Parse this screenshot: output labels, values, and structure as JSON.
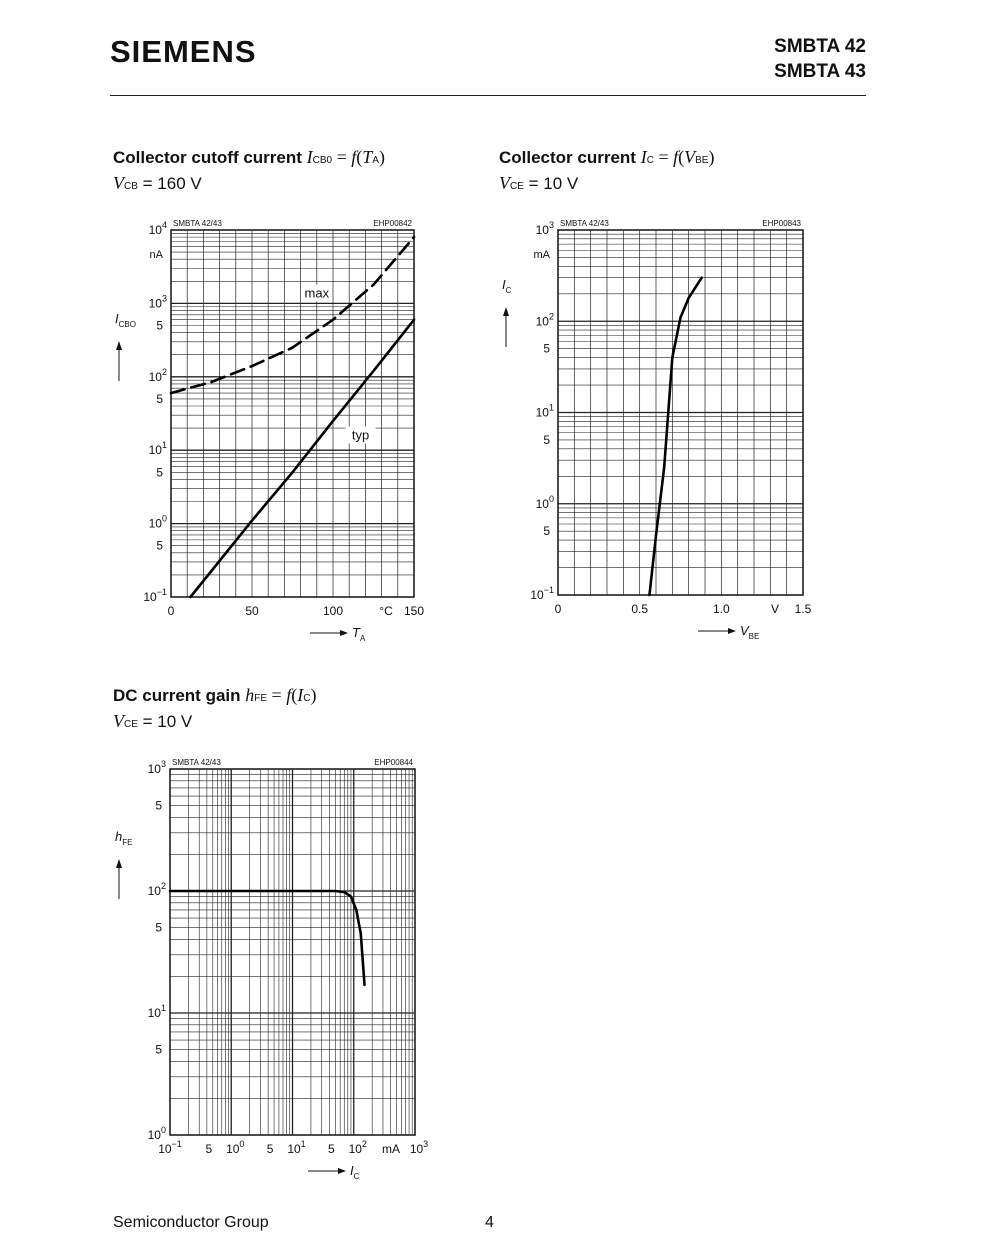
{
  "header": {
    "logo": "SIEMENS",
    "part1": "SMBTA 42",
    "part2": "SMBTA 43"
  },
  "footer": {
    "left": "Semiconductor Group",
    "page": "4"
  },
  "charts_text": [
    {
      "title": "Collector cutoff current",
      "formula_sym": "I",
      "formula_sub": "CB0",
      "formula_eq": " = ",
      "formula_fn": "f",
      "formula_arg": "T",
      "formula_arg_sub": "A",
      "cond_sym": "V",
      "cond_sub": "CB",
      "cond_val": " = 160 V"
    },
    {
      "title": "Collector current",
      "formula_sym": "I",
      "formula_sub": "C",
      "formula_eq": " = ",
      "formula_fn": "f",
      "formula_arg": "V",
      "formula_arg_sub": "BE",
      "cond_sym": "V",
      "cond_sub": "CE",
      "cond_val": " = 10 V"
    },
    {
      "title": "DC current gain",
      "formula_sym": "h",
      "formula_sub": "FE",
      "formula_eq": " = ",
      "formula_fn": "f",
      "formula_arg": "I",
      "formula_arg_sub": "C",
      "cond_sym": "V",
      "cond_sub": "CE",
      "cond_val": " = 10 V"
    }
  ],
  "chart_data": [
    {
      "type": "line",
      "name_left": "SMBTA 42/43",
      "name_right": "EHP00842",
      "xscale": "linear",
      "yscale": "log",
      "xlim": [
        0,
        150
      ],
      "ylim": [
        0.1,
        10000
      ],
      "xticks": [
        0,
        50,
        100,
        150
      ],
      "xtick_labels": [
        "0",
        "50",
        "100",
        "150"
      ],
      "x_unit": "°C",
      "y_unit": "nA",
      "y_decade_labels": [
        {
          "v": 0.1,
          "b": "10",
          "e": "−1"
        },
        {
          "v": 1,
          "b": "10",
          "e": "0"
        },
        {
          "v": 10,
          "b": "10",
          "e": "1"
        },
        {
          "v": 100,
          "b": "10",
          "e": "2"
        },
        {
          "v": 1000,
          "b": "10",
          "e": "3"
        },
        {
          "v": 10000,
          "b": "10",
          "e": "4"
        }
      ],
      "y_five_labels": [
        0.5,
        5,
        50,
        500
      ],
      "five_text": "5",
      "xlabel_sym": "T",
      "xlabel_sub": "A",
      "ylabel_sym": "I",
      "ylabel_sub": "CBO",
      "grid": true,
      "series": [
        {
          "name": "max",
          "dashed": true,
          "x": [
            0,
            25,
            50,
            75,
            100,
            125,
            150
          ],
          "y": [
            60,
            85,
            140,
            250,
            600,
            1800,
            8000
          ]
        },
        {
          "name": "typ",
          "dashed": false,
          "x": [
            12,
            50,
            75,
            100,
            125,
            150
          ],
          "y": [
            0.1,
            1.1,
            5,
            25,
            120,
            600
          ]
        }
      ]
    },
    {
      "type": "line",
      "name_left": "SMBTA 42/43",
      "name_right": "EHP00843",
      "xscale": "linear",
      "yscale": "log",
      "xlim": [
        0,
        1.5
      ],
      "ylim": [
        0.1,
        1000
      ],
      "xticks": [
        0,
        0.5,
        1.0,
        1.5
      ],
      "xtick_labels": [
        "0",
        "0.5",
        "1.0",
        "1.5"
      ],
      "x_unit": "V",
      "y_unit": "mA",
      "y_decade_labels": [
        {
          "v": 0.1,
          "b": "10",
          "e": "−1"
        },
        {
          "v": 1,
          "b": "10",
          "e": "0"
        },
        {
          "v": 10,
          "b": "10",
          "e": "1"
        },
        {
          "v": 100,
          "b": "10",
          "e": "2"
        },
        {
          "v": 1000,
          "b": "10",
          "e": "3"
        }
      ],
      "y_five_labels": [
        0.5,
        5,
        50
      ],
      "five_text": "5",
      "xlabel_sym": "V",
      "xlabel_sub": "BE",
      "ylabel_sym": "I",
      "ylabel_sub": "C",
      "grid": true,
      "series": [
        {
          "name": "",
          "dashed": false,
          "x": [
            0.56,
            0.6,
            0.65,
            0.7,
            0.75,
            0.8,
            0.88
          ],
          "y": [
            0.1,
            0.45,
            2.5,
            40,
            110,
            180,
            300
          ]
        }
      ]
    },
    {
      "type": "line",
      "name_left": "SMBTA 42/43",
      "name_right": "EHP00844",
      "xscale": "log",
      "yscale": "log",
      "xlim": [
        0.1,
        1000
      ],
      "ylim": [
        1,
        1000
      ],
      "x_decade_labels": [
        {
          "v": 0.1,
          "b": "10",
          "e": "−1"
        },
        {
          "v": 1,
          "b": "10",
          "e": "0"
        },
        {
          "v": 10,
          "b": "10",
          "e": "1"
        },
        {
          "v": 100,
          "b": "10",
          "e": "2"
        },
        {
          "v": 1000,
          "b": "10",
          "e": "3"
        }
      ],
      "x_five_labels": [
        0.5,
        5,
        50
      ],
      "x_unit": "mA",
      "y_decade_labels": [
        {
          "v": 1,
          "b": "10",
          "e": "0"
        },
        {
          "v": 10,
          "b": "10",
          "e": "1"
        },
        {
          "v": 100,
          "b": "10",
          "e": "2"
        },
        {
          "v": 1000,
          "b": "10",
          "e": "3"
        }
      ],
      "y_five_labels": [
        5,
        50,
        500
      ],
      "five_text": "5",
      "xlabel_sym": "I",
      "xlabel_sub": "C",
      "ylabel_sym": "h",
      "ylabel_sub": "FE",
      "grid": true,
      "series": [
        {
          "name": "",
          "dashed": false,
          "x": [
            0.1,
            1,
            10,
            50,
            70,
            90,
            110,
            130,
            150
          ],
          "y": [
            100,
            100,
            100,
            100,
            98,
            90,
            70,
            45,
            17
          ]
        }
      ]
    }
  ]
}
